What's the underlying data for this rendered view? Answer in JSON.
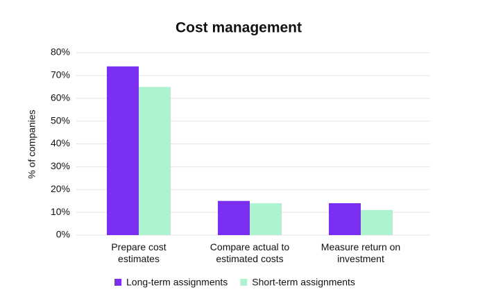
{
  "chart_data": {
    "type": "bar",
    "title": "Cost management",
    "y_label": "% of companies",
    "categories": [
      "Prepare cost estimates",
      "Compare actual to estimated costs",
      "Measure return on investment"
    ],
    "series": [
      {
        "name": "Long-term assignments",
        "color": "#7b2ff0",
        "values": [
          74,
          15,
          14
        ]
      },
      {
        "name": "Short-term assignments",
        "color": "#aef2d0",
        "values": [
          65,
          14,
          11
        ]
      }
    ],
    "ylim": [
      0,
      80
    ],
    "yticks": [
      {
        "value": 0,
        "label": "0%"
      },
      {
        "value": 10,
        "label": "10%"
      },
      {
        "value": 20,
        "label": "20%"
      },
      {
        "value": 30,
        "label": "30%"
      },
      {
        "value": 40,
        "label": "40%"
      },
      {
        "value": 50,
        "label": "50%"
      },
      {
        "value": 60,
        "label": "60%"
      },
      {
        "value": 70,
        "label": "70%"
      },
      {
        "value": 80,
        "label": "80%"
      }
    ],
    "grid": true,
    "legend": "bottom"
  }
}
